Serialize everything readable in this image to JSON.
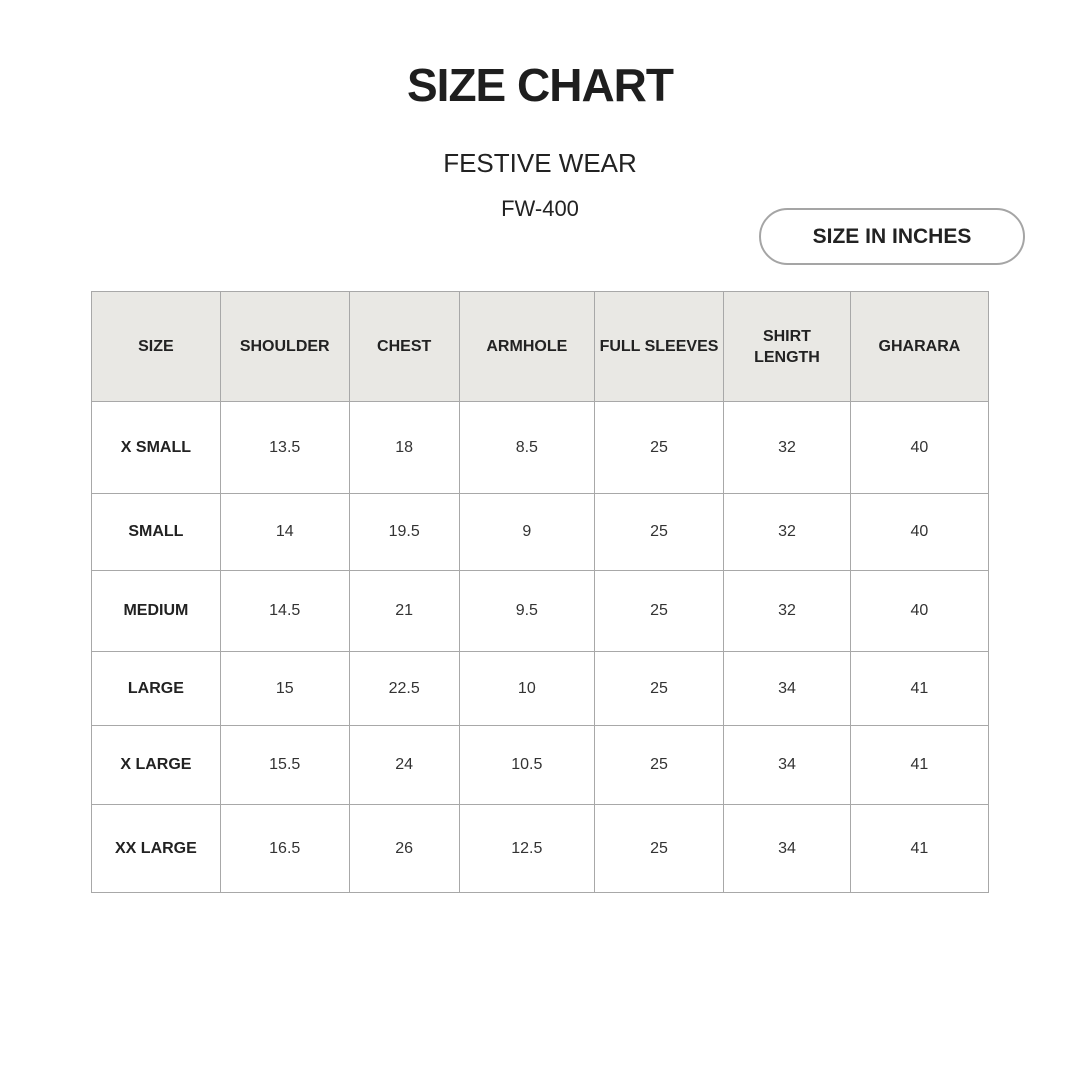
{
  "title": "SIZE CHART",
  "subtitle": "FESTIVE WEAR",
  "product_code": "FW-400",
  "unit_label": "SIZE IN INCHES",
  "colors": {
    "header_bg": "#e9e8e4",
    "border": "#a8a8a8",
    "text": "#222222"
  },
  "table": {
    "headers": [
      "SIZE",
      "SHOULDER",
      "CHEST",
      "ARMHOLE",
      "FULL SLEEVES",
      "SHIRT LENGTH",
      "GHARARA"
    ],
    "rows": [
      [
        "X SMALL",
        "13.5",
        "18",
        "8.5",
        "25",
        "32",
        "40"
      ],
      [
        "SMALL",
        "14",
        "19.5",
        "9",
        "25",
        "32",
        "40"
      ],
      [
        "MEDIUM",
        "14.5",
        "21",
        "9.5",
        "25",
        "32",
        "40"
      ],
      [
        "LARGE",
        "15",
        "22.5",
        "10",
        "25",
        "34",
        "41"
      ],
      [
        "X LARGE",
        "15.5",
        "24",
        "10.5",
        "25",
        "34",
        "41"
      ],
      [
        "XX LARGE",
        "16.5",
        "26",
        "12.5",
        "25",
        "34",
        "41"
      ]
    ]
  }
}
